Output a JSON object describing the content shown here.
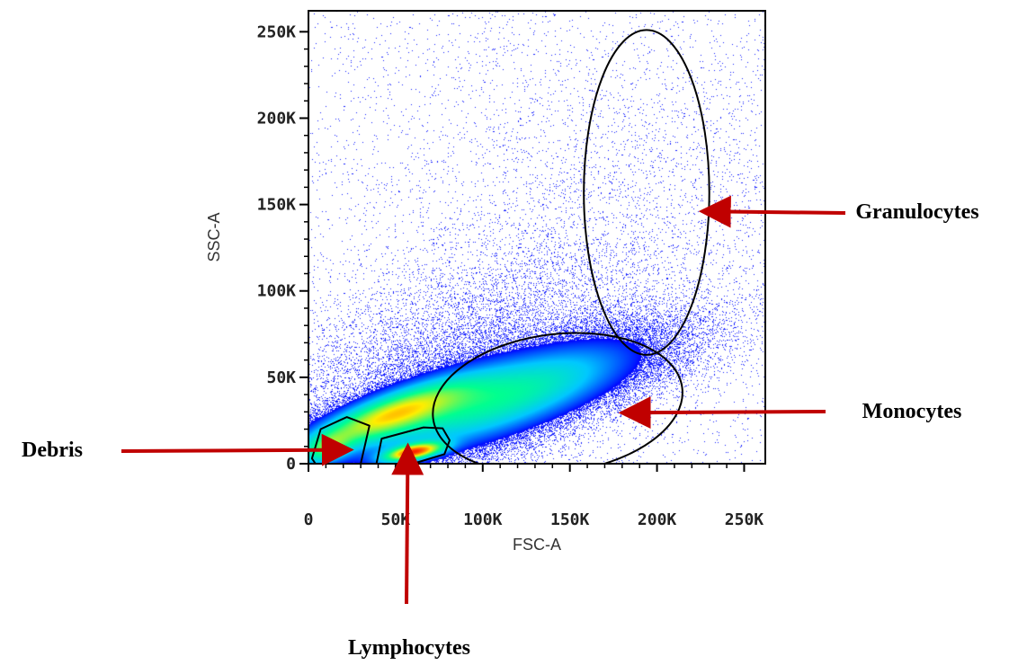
{
  "chart_data": {
    "type": "scatter",
    "title": "",
    "xlabel": "FSC-A",
    "ylabel": "SSC-A",
    "xlim": [
      0,
      262144
    ],
    "ylim": [
      0,
      262144
    ],
    "x_ticks": [
      {
        "value": 0,
        "label": "0"
      },
      {
        "value": 50000,
        "label": "50K"
      },
      {
        "value": 100000,
        "label": "100K"
      },
      {
        "value": 150000,
        "label": "150K"
      },
      {
        "value": 200000,
        "label": "200K"
      },
      {
        "value": 250000,
        "label": "250K"
      }
    ],
    "y_ticks": [
      {
        "value": 0,
        "label": "0"
      },
      {
        "value": 50000,
        "label": "50K"
      },
      {
        "value": 100000,
        "label": "100K"
      },
      {
        "value": 150000,
        "label": "150K"
      },
      {
        "value": 200000,
        "label": "200K"
      },
      {
        "value": 250000,
        "label": "250K"
      }
    ],
    "colormap": [
      "#0000ff",
      "#00c8ff",
      "#00ff90",
      "#ffee00",
      "#ff2000"
    ],
    "populations": [
      {
        "cx": 45000,
        "cy": 28000,
        "sx": 30000,
        "sy": 13000,
        "rho": 0.8,
        "weight": 0.26
      },
      {
        "cx": 110000,
        "cy": 38000,
        "sx": 48000,
        "sy": 20000,
        "rho": 0.74,
        "weight": 0.5
      },
      {
        "cx": 75000,
        "cy": 45000,
        "sx": 60000,
        "sy": 40000,
        "rho": 0.5,
        "weight": 0.16
      },
      {
        "cx": 60000,
        "cy": 7000,
        "sx": 11000,
        "sy": 3500,
        "rho": 0.55,
        "weight": 0.05
      },
      {
        "cx": 10000,
        "cy": 9000,
        "sx": 9000,
        "sy": 6000,
        "rho": 0.4,
        "weight": 0.03
      },
      {
        "cx": 180000,
        "cy": 140000,
        "sx": 65000,
        "sy": 65000,
        "rho": 0.0,
        "weight": 0.035,
        "sparse": true
      }
    ],
    "gates": [
      {
        "name": "Granulocytes",
        "shape": "ellipse",
        "center": [
          194000,
          157000
        ],
        "radii": [
          36000,
          94000
        ],
        "label_pos": [
          1020,
          243
        ],
        "arrow_to": [
          230000,
          146000
        ]
      },
      {
        "name": "Monocytes",
        "shape": "ellipse",
        "center": [
          143000,
          35000
        ],
        "radii": [
          72000,
          40000
        ],
        "rotate_deg": -7,
        "label_pos": [
          1014,
          465
        ],
        "arrow_to": [
          184000,
          29500
        ]
      },
      {
        "name": "Debris",
        "shape": "polygon",
        "points": [
          [
            2000,
            3000
          ],
          [
            7000,
            20000
          ],
          [
            22000,
            27000
          ],
          [
            35000,
            22000
          ],
          [
            30000,
            0
          ],
          [
            4000,
            0
          ]
        ],
        "label_pos": [
          58,
          508
        ],
        "arrow_to": [
          20000,
          8000
        ]
      },
      {
        "name": "Lymphocytes",
        "shape": "polygon",
        "points": [
          [
            39000,
            0
          ],
          [
            42000,
            14500
          ],
          [
            66000,
            21000
          ],
          [
            77000,
            20500
          ],
          [
            81000,
            13500
          ],
          [
            78000,
            5500
          ],
          [
            60000,
            0
          ]
        ],
        "label_pos": [
          455,
          728
        ],
        "arrow_to": [
          57000,
          6000
        ]
      }
    ]
  }
}
